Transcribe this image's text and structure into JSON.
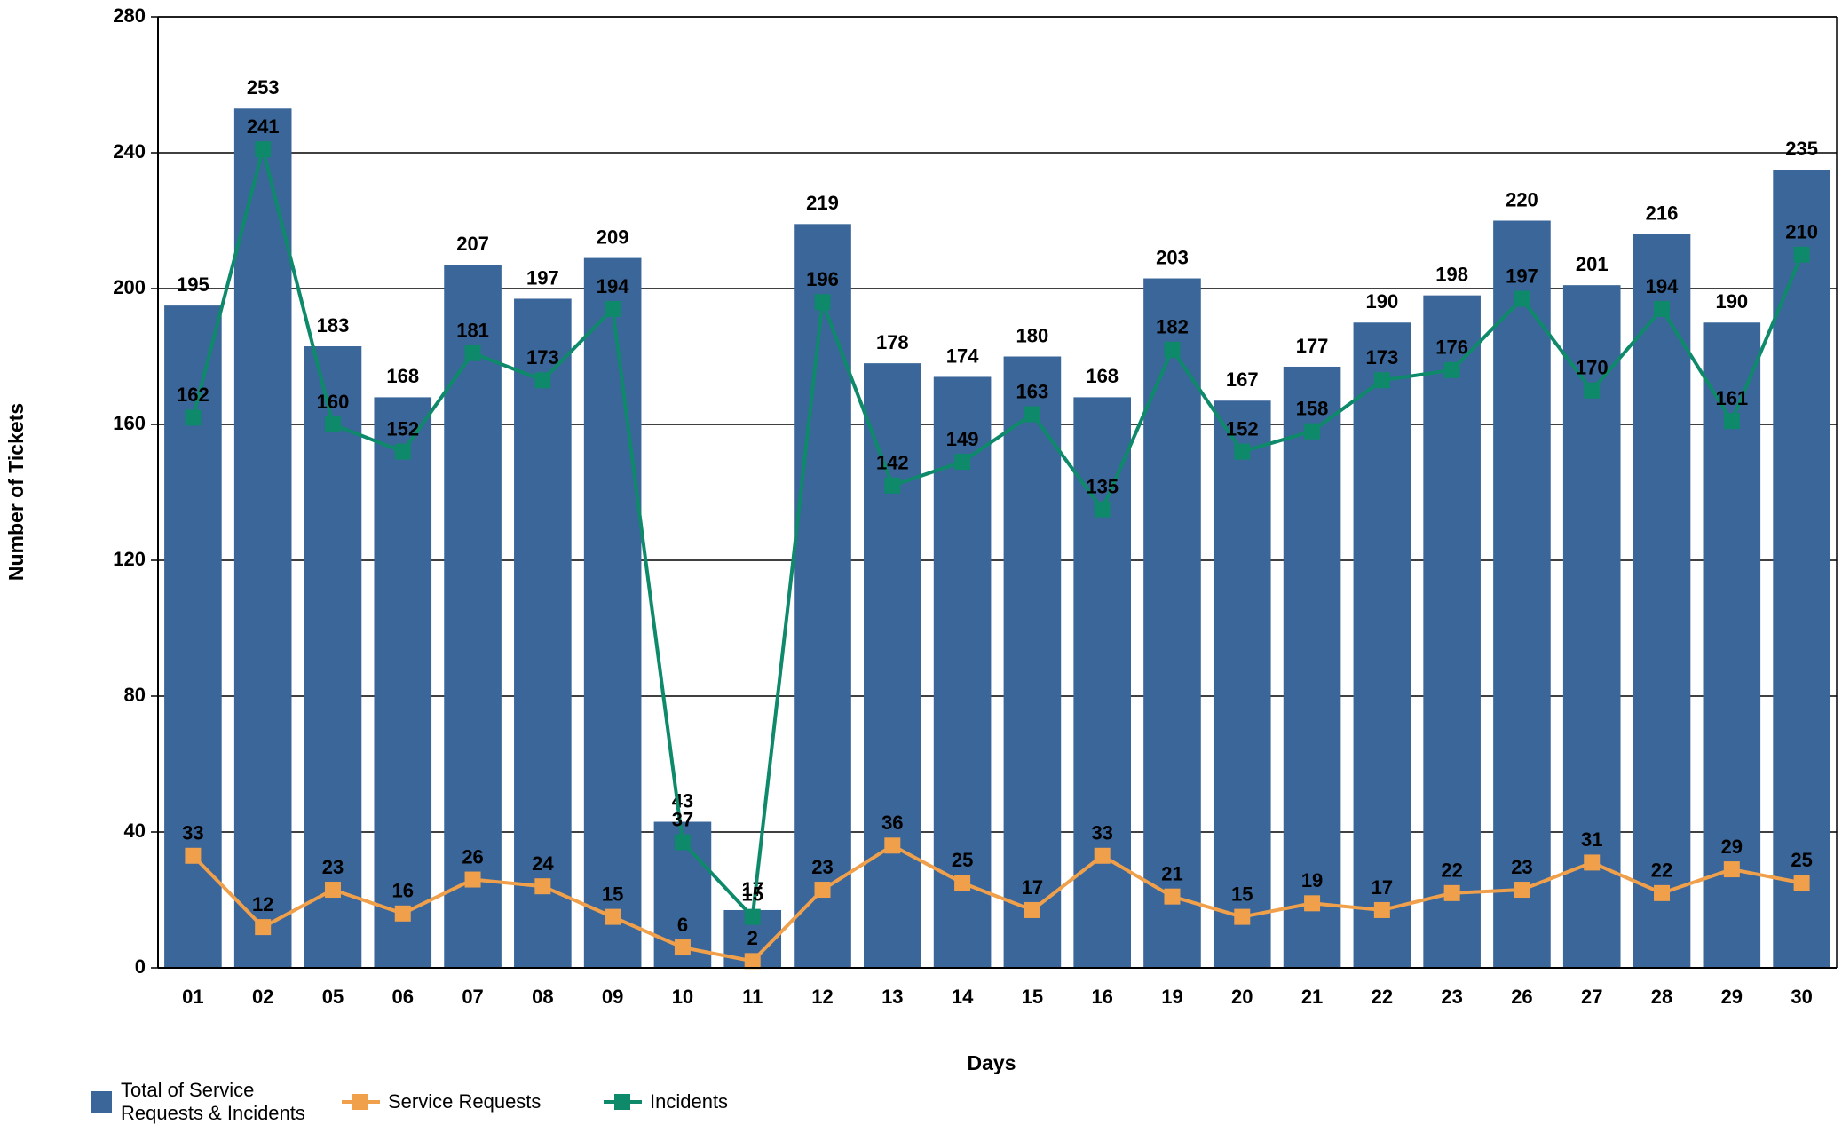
{
  "chart_data": {
    "type": "bar-line",
    "x_label": "Days",
    "y_label": "Number of Tickets",
    "categories": [
      "01",
      "02",
      "05",
      "06",
      "07",
      "08",
      "09",
      "10",
      "11",
      "12",
      "13",
      "14",
      "15",
      "16",
      "19",
      "20",
      "21",
      "22",
      "23",
      "26",
      "27",
      "28",
      "29",
      "30"
    ],
    "series": [
      {
        "name": "Total of Service Requests & Incidents",
        "type": "bar",
        "color": "#3a6699",
        "values": [
          195,
          253,
          183,
          168,
          207,
          197,
          209,
          43,
          17,
          219,
          178,
          174,
          180,
          168,
          203,
          167,
          177,
          190,
          198,
          220,
          201,
          216,
          190,
          235
        ]
      },
      {
        "name": "Service Requests",
        "type": "line",
        "color": "#f0a04b",
        "values": [
          33,
          12,
          23,
          16,
          26,
          24,
          15,
          6,
          2,
          23,
          36,
          25,
          17,
          33,
          21,
          15,
          19,
          17,
          22,
          23,
          31,
          22,
          29,
          25
        ]
      },
      {
        "name": "Incidents",
        "type": "line",
        "color": "#0e8a6a",
        "values": [
          162,
          241,
          160,
          152,
          181,
          173,
          194,
          37,
          15,
          196,
          142,
          149,
          163,
          135,
          182,
          152,
          158,
          173,
          176,
          197,
          170,
          194,
          161,
          210
        ]
      }
    ],
    "ylim": [
      0,
      280
    ],
    "yticks": [
      0,
      40,
      80,
      120,
      160,
      200,
      240,
      280
    ],
    "grid": true
  }
}
